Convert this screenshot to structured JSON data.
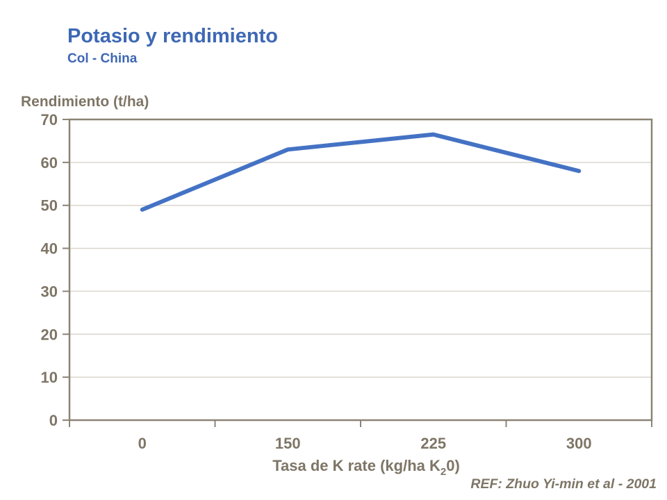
{
  "header": {
    "title": "Potasio y rendimiento",
    "subtitle": "Col - China",
    "title_color": "#3E68B4"
  },
  "chart_data": {
    "type": "line",
    "title": "Potasio y rendimiento",
    "subtitle": "Col - China",
    "categories": [
      "0",
      "150",
      "225",
      "300"
    ],
    "series": [
      {
        "name": "Rendimiento",
        "values": [
          49,
          63,
          66.5,
          58
        ],
        "color": "#4472C4",
        "line_width": 6
      }
    ],
    "ylabel": "Rendimiento (t/ha)",
    "xlabel": "Tasa de K rate (kg/ha K20)",
    "xlabel_parts": {
      "prefix": "Tasa de K rate (kg/ha K",
      "sub": "2",
      "suffix": "0)"
    },
    "ylim": [
      0,
      70
    ],
    "yticks": [
      0,
      10,
      20,
      30,
      40,
      50,
      60,
      70
    ],
    "grid": "horizontal",
    "legend": "none",
    "colors": {
      "axis": "#8C8375",
      "grid": "#DBD6CE",
      "text": "#7E7566"
    }
  },
  "footer": {
    "ref": "REF: Zhuo Yi-min et al - 2001"
  }
}
